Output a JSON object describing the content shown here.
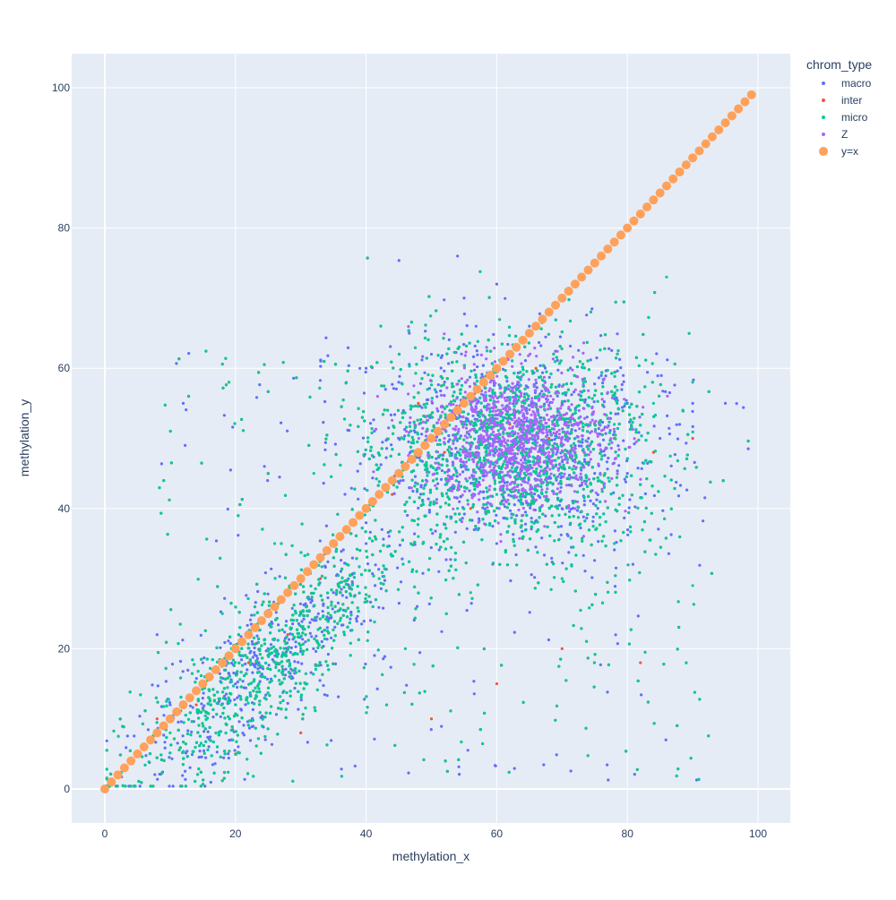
{
  "chart_data": {
    "type": "scatter",
    "title": "",
    "xlabel": "methylation_x",
    "ylabel": "methylation_y",
    "xlim": [
      -5,
      105
    ],
    "ylim": [
      -5,
      105
    ],
    "x_ticks": [
      0,
      20,
      40,
      60,
      80,
      100
    ],
    "y_ticks": [
      0,
      20,
      40,
      60,
      80,
      100
    ],
    "grid": true,
    "background_color": "#E5ECF6",
    "legend": {
      "title": "chrom_type",
      "placement": "right"
    },
    "series": [
      {
        "name": "macro",
        "color": "#636EFA",
        "marker": "small-dot",
        "description_of_distribution": "dense cloud; low cluster near (20,15), main cluster near (60,50)",
        "points": [
          [
            10,
            12
          ],
          [
            15,
            18
          ],
          [
            20,
            15
          ],
          [
            25,
            20
          ],
          [
            30,
            25
          ],
          [
            35,
            28
          ],
          [
            40,
            35
          ],
          [
            45,
            45
          ],
          [
            50,
            50
          ],
          [
            55,
            52
          ],
          [
            60,
            50
          ],
          [
            65,
            48
          ],
          [
            70,
            55
          ],
          [
            75,
            52
          ],
          [
            80,
            55
          ],
          [
            85,
            50
          ],
          [
            90,
            55
          ],
          [
            55,
            70
          ],
          [
            60,
            72
          ],
          [
            65,
            66
          ],
          [
            50,
            62
          ],
          [
            45,
            58
          ],
          [
            70,
            40
          ],
          [
            75,
            45
          ],
          [
            80,
            45
          ],
          [
            88,
            52
          ],
          [
            95,
            55
          ],
          [
            12,
            55
          ],
          [
            8,
            22
          ],
          [
            54,
            76
          ],
          [
            40,
            60
          ],
          [
            60,
            35
          ]
        ]
      },
      {
        "name": "inter",
        "color": "#EF553B",
        "marker": "small-dot",
        "points": [
          [
            8,
            10
          ],
          [
            14,
            12
          ],
          [
            22,
            18
          ],
          [
            28,
            22
          ],
          [
            33,
            30
          ],
          [
            38,
            38
          ],
          [
            44,
            42
          ],
          [
            52,
            48
          ],
          [
            58,
            45
          ],
          [
            62,
            52
          ],
          [
            68,
            50
          ],
          [
            72,
            48
          ],
          [
            78,
            50
          ],
          [
            84,
            48
          ],
          [
            90,
            50
          ],
          [
            20,
            5
          ],
          [
            30,
            8
          ],
          [
            50,
            10
          ],
          [
            60,
            15
          ],
          [
            70,
            20
          ],
          [
            82,
            18
          ],
          [
            48,
            55
          ],
          [
            66,
            60
          ],
          [
            56,
            40
          ]
        ]
      },
      {
        "name": "micro",
        "color": "#00CC96",
        "marker": "small-dot",
        "points": [
          [
            10,
            8
          ],
          [
            16,
            14
          ],
          [
            24,
            16
          ],
          [
            30,
            20
          ],
          [
            36,
            24
          ],
          [
            42,
            30
          ],
          [
            48,
            36
          ],
          [
            54,
            40
          ],
          [
            60,
            42
          ],
          [
            66,
            45
          ],
          [
            72,
            50
          ],
          [
            78,
            52
          ],
          [
            84,
            55
          ],
          [
            90,
            58
          ],
          [
            26,
            35
          ],
          [
            32,
            45
          ],
          [
            46,
            20
          ],
          [
            56,
            28
          ],
          [
            70,
            30
          ],
          [
            78,
            35
          ],
          [
            86,
            73
          ],
          [
            90,
            29
          ],
          [
            18,
            25
          ],
          [
            62,
            55
          ]
        ]
      },
      {
        "name": "Z",
        "color": "#AB63FA",
        "marker": "small-dot",
        "points": [
          [
            55,
            48
          ],
          [
            58,
            50
          ],
          [
            60,
            52
          ],
          [
            62,
            48
          ],
          [
            64,
            50
          ],
          [
            66,
            52
          ],
          [
            68,
            48
          ],
          [
            60,
            45
          ],
          [
            56,
            52
          ],
          [
            64,
            46
          ],
          [
            70,
            50
          ],
          [
            62,
            55
          ],
          [
            58,
            46
          ],
          [
            66,
            44
          ],
          [
            52,
            50
          ],
          [
            72,
            52
          ]
        ]
      },
      {
        "name": "y=x",
        "color": "#FFA15A",
        "marker": "large-dot",
        "line": "y=x",
        "x_range": [
          0,
          99
        ],
        "step": 1
      }
    ]
  }
}
